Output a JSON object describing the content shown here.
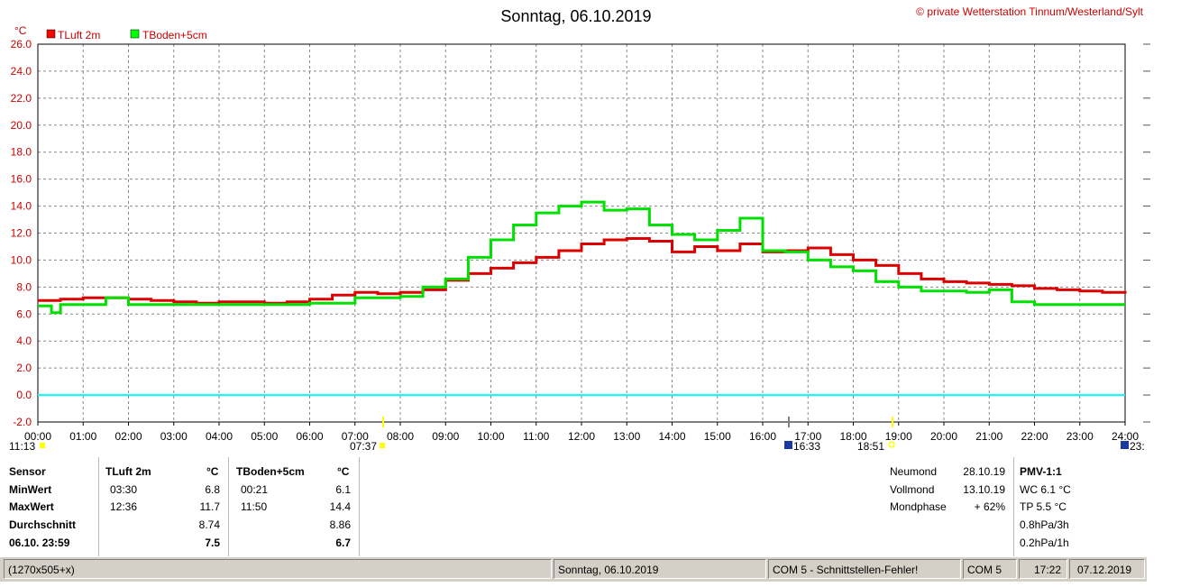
{
  "header": {
    "title": "Sonntag, 06.10.2019",
    "copyright": "© private Wetterstation Tinnum/Westerland/Sylt",
    "unit": "°C"
  },
  "legend": [
    {
      "label": "TLuft 2m",
      "color": "#ff0000"
    },
    {
      "label": "TBoden+5cm",
      "color": "#00ff00"
    }
  ],
  "chart_data": {
    "type": "line",
    "title": "Sonntag, 06.10.2019",
    "ylabel": "°C",
    "ylim": [
      -2,
      26
    ],
    "yticks": [
      "26.0",
      "24.0",
      "22.0",
      "20.0",
      "18.0",
      "16.0",
      "14.0",
      "12.0",
      "10.0",
      "8.0",
      "6.0",
      "4.0",
      "2.0",
      "0.0",
      "-2.0"
    ],
    "xlim": [
      0,
      24
    ],
    "xticks": [
      "00:00",
      "01:00",
      "02:00",
      "03:00",
      "04:00",
      "05:00",
      "06:00",
      "07:00",
      "08:00",
      "09:00",
      "10:00",
      "11:00",
      "12:00",
      "13:00",
      "14:00",
      "15:00",
      "16:00",
      "17:00",
      "18:00",
      "19:00",
      "20:00",
      "21:00",
      "22:00",
      "23:00",
      "24:00"
    ],
    "grid": true,
    "zero_line_color": "#00ffff",
    "series": [
      {
        "name": "TLuft 2m",
        "color": "#dd0000",
        "x": [
          0,
          0.5,
          1,
          1.5,
          2,
          2.5,
          3,
          3.5,
          4,
          4.5,
          5,
          5.5,
          6,
          6.5,
          7,
          7.5,
          8,
          8.5,
          9,
          9.5,
          10,
          10.5,
          11,
          11.5,
          12,
          12.5,
          13,
          13.5,
          14,
          14.5,
          15,
          15.5,
          16,
          16.5,
          17,
          17.5,
          18,
          18.5,
          19,
          19.5,
          20,
          20.5,
          21,
          21.5,
          22,
          22.5,
          23,
          23.5,
          24
        ],
        "values": [
          7.0,
          7.1,
          7.2,
          7.2,
          7.1,
          7.0,
          6.9,
          6.8,
          6.9,
          6.9,
          6.8,
          6.9,
          7.1,
          7.4,
          7.6,
          7.5,
          7.6,
          7.8,
          8.5,
          9.0,
          9.4,
          9.8,
          10.2,
          10.7,
          11.2,
          11.5,
          11.6,
          11.4,
          10.6,
          11.0,
          10.7,
          11.2,
          10.6,
          10.7,
          10.9,
          10.4,
          10.0,
          9.6,
          9.0,
          8.6,
          8.4,
          8.3,
          8.2,
          8.1,
          7.9,
          7.8,
          7.7,
          7.6,
          7.5
        ]
      },
      {
        "name": "TBoden+5cm",
        "color": "#00e000",
        "x": [
          0,
          0.3,
          0.5,
          1,
          1.5,
          2,
          3,
          4,
          5,
          6,
          7,
          7.5,
          8,
          8.5,
          9,
          9.5,
          10,
          10.5,
          11,
          11.5,
          12,
          12.5,
          13,
          13.5,
          14,
          14.5,
          15,
          15.5,
          16,
          16.5,
          17,
          17.5,
          18,
          18.5,
          19,
          19.5,
          20,
          20.5,
          21,
          21.5,
          22,
          22.5,
          23,
          23.5,
          24
        ],
        "values": [
          6.6,
          6.1,
          6.7,
          6.7,
          7.2,
          6.7,
          6.7,
          6.7,
          6.7,
          6.8,
          7.2,
          7.2,
          7.3,
          8.0,
          8.6,
          10.2,
          11.5,
          12.6,
          13.5,
          14.0,
          14.3,
          13.7,
          13.8,
          12.6,
          11.9,
          11.5,
          12.2,
          13.1,
          10.7,
          10.6,
          10.0,
          9.5,
          9.2,
          8.4,
          8.0,
          7.7,
          7.7,
          7.6,
          7.8,
          6.9,
          6.7,
          6.7,
          6.7,
          6.7,
          6.7
        ]
      }
    ]
  },
  "astro": {
    "sunrise": "07:37",
    "sunset": "18:51",
    "moonset": "16:33",
    "left_label": "11:13",
    "right_label": "23:"
  },
  "table": {
    "headers": {
      "sensor": "Sensor",
      "s1": "TLuft 2m",
      "u1": "°C",
      "s2": "TBoden+5cm",
      "u2": "°C"
    },
    "rows": [
      {
        "label": "MinWert",
        "t1": "03:30",
        "v1": "6.8",
        "t2": "00:21",
        "v2": "6.1"
      },
      {
        "label": "MaxWert",
        "t1": "12:36",
        "v1": "11.7",
        "t2": "11:50",
        "v2": "14.4"
      },
      {
        "label": "Durchschnitt",
        "t1": "",
        "v1": "8.74",
        "t2": "",
        "v2": "8.86"
      },
      {
        "label": "06.10. 23:59",
        "t1": "",
        "v1": "7.5",
        "t2": "",
        "v2": "6.7"
      }
    ]
  },
  "moon": [
    {
      "label": "Neumond",
      "value": "28.10.19"
    },
    {
      "label": "Vollmond",
      "value": "13.10.19"
    },
    {
      "label": "Mondphase",
      "value": "+ 62%"
    }
  ],
  "pmv": {
    "title": "PMV-1:1",
    "lines": [
      "WC 6.1 °C",
      "TP 5.5 °C",
      "0.8hPa/3h",
      "0.2hPa/1h"
    ]
  },
  "statusbar": {
    "size": "(1270x505+x)",
    "date": "Sonntag, 06.10.2019",
    "error": "COM 5 - Schnittstellen-Fehler!",
    "port": "COM 5",
    "time": "17:22",
    "today": "07.12.2019"
  }
}
